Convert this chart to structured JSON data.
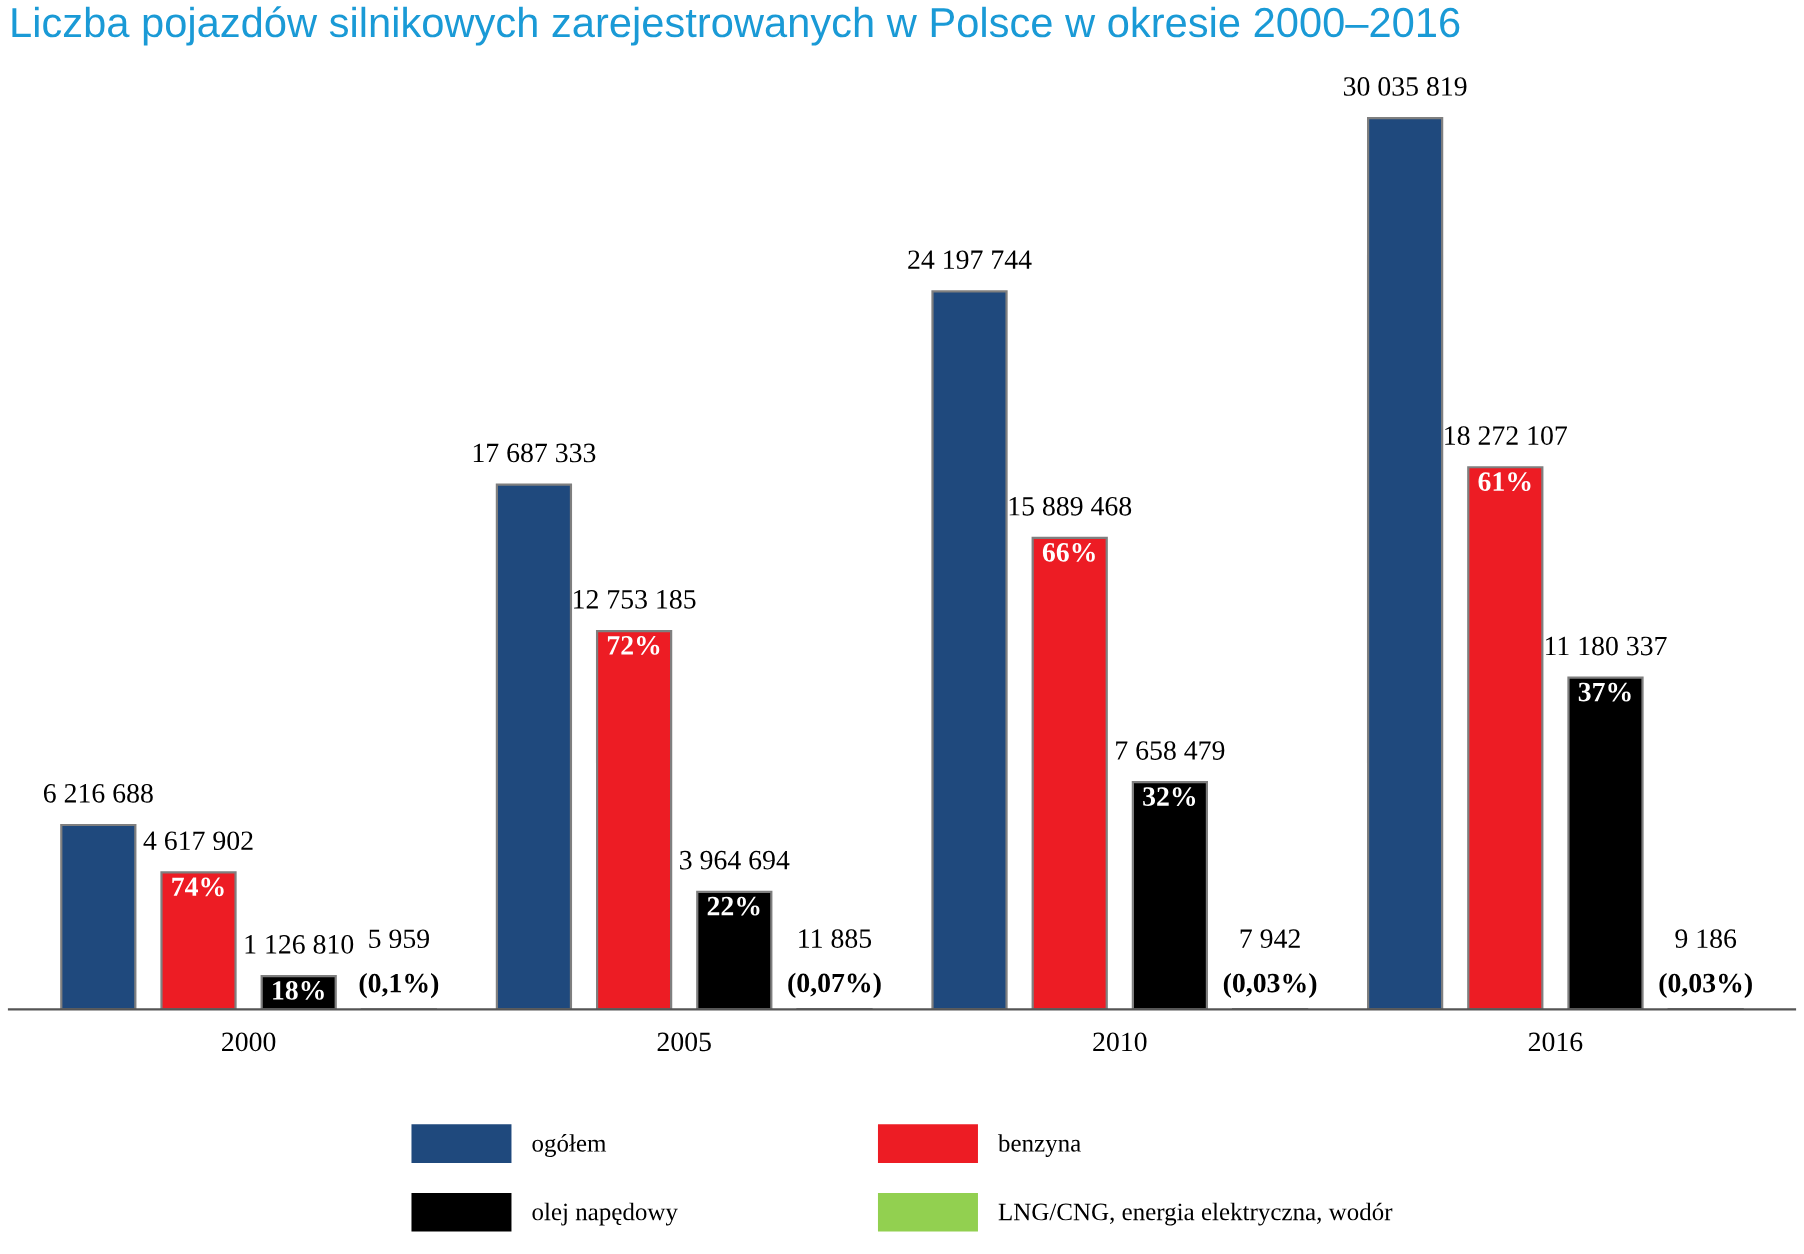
{
  "chart_data": {
    "type": "bar",
    "title": "Liczba pojazdów silnikowych zarejestrowanych w Polsce w okresie 2000–2016",
    "categories": [
      "2000",
      "2005",
      "2010",
      "2016"
    ],
    "series": [
      {
        "name": "ogółem",
        "color": "#1f497d",
        "values": [
          6216688,
          17687333,
          24197744,
          30035819
        ],
        "value_labels": [
          "6 216 688",
          "17 687 333",
          "24 197 744",
          "30 035 819"
        ]
      },
      {
        "name": "benzyna",
        "color": "#ed1c24",
        "values": [
          4617902,
          12753185,
          15889468,
          18272107
        ],
        "value_labels": [
          "4 617 902",
          "12 753 185",
          "15 889 468",
          "18 272 107"
        ]
      },
      {
        "name": "olej napędowy",
        "color": "#000000",
        "values": [
          1126810,
          3964694,
          7658479,
          11180337
        ],
        "value_labels": [
          "1 126 810",
          "3 964 694",
          "7 658 479",
          "11 180 337"
        ]
      },
      {
        "name": "LNG/CNG, energia elektryczna, wodór",
        "color": "#92d050",
        "values": [
          5959,
          11885,
          7942,
          9186
        ],
        "value_labels": [
          "5 959",
          "11 885",
          "7 942",
          "9 186"
        ]
      }
    ],
    "annotations": [
      "74%",
      "18%",
      "(0,1%)",
      "72%",
      "22%",
      "(0,07%)",
      "66%",
      "32%",
      "(0,03%)",
      "61%",
      "37%",
      "(0,03%)"
    ],
    "tick_labels": "x",
    "legend": "bottom",
    "grid": false
  }
}
